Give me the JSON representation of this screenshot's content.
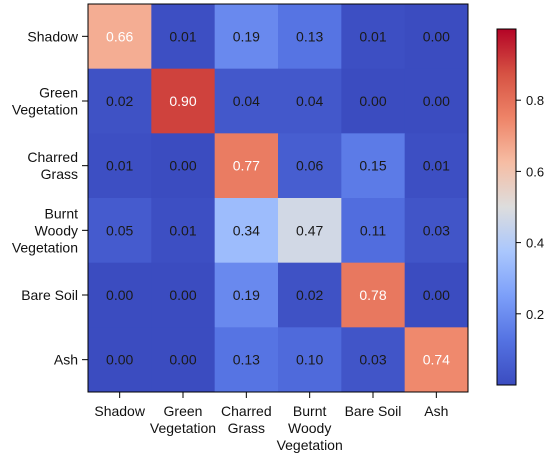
{
  "chart_data": {
    "type": "heatmap",
    "title": "",
    "xlabel": "",
    "ylabel": "",
    "rows": [
      [
        "Shadow"
      ],
      [
        "Green",
        "Vegetation"
      ],
      [
        "Charred",
        "Grass"
      ],
      [
        "Burnt",
        "Woody",
        "Vegetation"
      ],
      [
        "Bare Soil"
      ],
      [
        "Ash"
      ]
    ],
    "columns": [
      [
        "Shadow"
      ],
      [
        "Green",
        "Vegetation"
      ],
      [
        "Charred",
        "Grass"
      ],
      [
        "Burnt",
        "Woody",
        "Vegetation"
      ],
      [
        "Bare Soil"
      ],
      [
        "Ash"
      ]
    ],
    "values": [
      [
        0.66,
        0.01,
        0.19,
        0.13,
        0.01,
        0.0
      ],
      [
        0.02,
        0.9,
        0.04,
        0.04,
        0.0,
        0.0
      ],
      [
        0.01,
        0.0,
        0.77,
        0.06,
        0.15,
        0.01
      ],
      [
        0.05,
        0.01,
        0.34,
        0.47,
        0.11,
        0.03
      ],
      [
        0.0,
        0.0,
        0.19,
        0.02,
        0.78,
        0.0
      ],
      [
        0.0,
        0.0,
        0.13,
        0.1,
        0.03,
        0.74
      ]
    ],
    "value_labels": [
      [
        "0.66",
        "0.01",
        "0.19",
        "0.13",
        "0.01",
        "0.00"
      ],
      [
        "0.02",
        "0.90",
        "0.04",
        "0.04",
        "0.00",
        "0.00"
      ],
      [
        "0.01",
        "0.00",
        "0.77",
        "0.06",
        "0.15",
        "0.01"
      ],
      [
        "0.05",
        "0.01",
        "0.34",
        "0.47",
        "0.11",
        "0.03"
      ],
      [
        "0.00",
        "0.00",
        "0.19",
        "0.02",
        "0.78",
        "0.00"
      ],
      [
        "0.00",
        "0.00",
        "0.13",
        "0.10",
        "0.03",
        "0.74"
      ]
    ],
    "colormap": "coolwarm",
    "vmin": 0,
    "vmax": 1,
    "colorbar": {
      "position": "right",
      "ticks": [
        0.2,
        0.4,
        0.6,
        0.8
      ],
      "tick_labels": [
        "0.2",
        "0.4",
        "0.6",
        "0.8"
      ]
    },
    "label_colors": {
      "dark": "#1a1a1a",
      "light": "#ffffff"
    },
    "grid": false
  }
}
